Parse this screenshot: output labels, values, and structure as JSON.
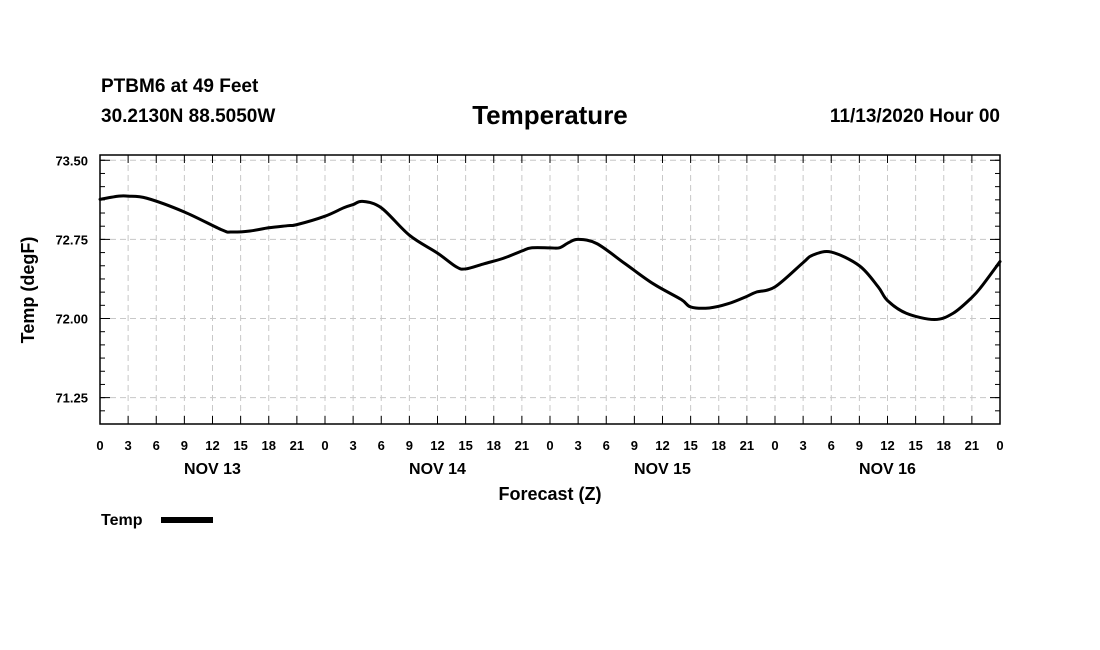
{
  "header": {
    "station": "PTBM6 at 49 Feet",
    "coords": "30.2130N 88.5050W",
    "datetime": "11/13/2020 Hour 00"
  },
  "colors": {
    "line": "#000000",
    "grid": "#c8c8c8"
  },
  "chart_data": {
    "type": "line",
    "title": "Temperature",
    "xlabel": "Forecast (Z)",
    "ylabel": "Temp (degF)",
    "ylim": [
      71.0,
      73.55
    ],
    "yticks": [
      71.25,
      72.0,
      72.75,
      73.5
    ],
    "ytick_labels": [
      "71.25",
      "72.00",
      "72.75",
      "73.50"
    ],
    "xlim": [
      0,
      96
    ],
    "hour_tick_labels": [
      "0",
      "3",
      "6",
      "9",
      "12",
      "15",
      "18",
      "21",
      "0",
      "3",
      "6",
      "9",
      "12",
      "15",
      "18",
      "21",
      "0",
      "3",
      "6",
      "9",
      "12",
      "15",
      "18",
      "21",
      "0",
      "3",
      "6",
      "9",
      "12",
      "15",
      "18",
      "21",
      "0"
    ],
    "day_labels": [
      {
        "text": "NOV 13",
        "hour": 12
      },
      {
        "text": "NOV 14",
        "hour": 36
      },
      {
        "text": "NOV 15",
        "hour": 60
      },
      {
        "text": "NOV 16",
        "hour": 84
      }
    ],
    "grid": true,
    "legend": "bottom-left",
    "series": [
      {
        "name": "Temp",
        "x": [
          0,
          2,
          3,
          5,
          9,
          13,
          14,
          16,
          18,
          20,
          21,
          24,
          26,
          27,
          28,
          30,
          33,
          36,
          38,
          39,
          41,
          43,
          45,
          46,
          48,
          49,
          50,
          51,
          53,
          56,
          59,
          62,
          63,
          65,
          67,
          69,
          70,
          72,
          75,
          76,
          78,
          81,
          83,
          84,
          86,
          89,
          91,
          93,
          94,
          96
        ],
        "y": [
          73.13,
          73.16,
          73.16,
          73.14,
          73.01,
          72.84,
          72.82,
          72.83,
          72.86,
          72.88,
          72.89,
          72.97,
          73.05,
          73.08,
          73.11,
          73.05,
          72.79,
          72.62,
          72.49,
          72.47,
          72.52,
          72.57,
          72.64,
          72.67,
          72.67,
          72.67,
          72.72,
          72.75,
          72.71,
          72.52,
          72.33,
          72.18,
          72.11,
          72.1,
          72.14,
          72.21,
          72.25,
          72.3,
          72.53,
          72.6,
          72.63,
          72.5,
          72.3,
          72.17,
          72.05,
          71.99,
          72.05,
          72.2,
          72.3,
          72.54
        ]
      }
    ]
  }
}
